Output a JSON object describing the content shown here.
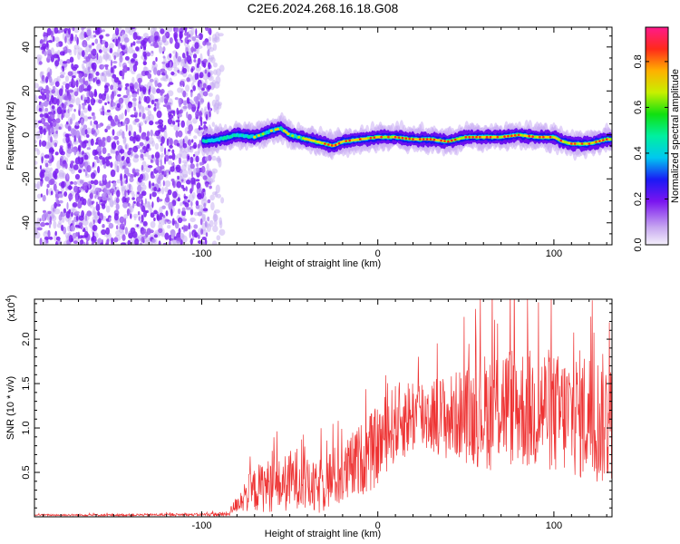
{
  "title": "C2E6.2024.268.16.18.G08",
  "chart_data": [
    {
      "type": "heatmap",
      "xlabel": "Height of straight line (km)",
      "ylabel": "Frequency (Hz)",
      "xlim": [
        -195,
        133
      ],
      "ylim": [
        -50,
        49
      ],
      "x_ticks": [
        -100,
        0,
        100
      ],
      "x_tick_labels": [
        "-100",
        "0",
        "100"
      ],
      "y_ticks": [
        -40,
        -20,
        0,
        20,
        40
      ],
      "y_tick_labels": [
        "-40",
        "-20",
        "0",
        "20",
        "40"
      ],
      "noise_region_x": [
        -195,
        -88
      ],
      "ridge": {
        "x": [
          -100,
          -90,
          -80,
          -70,
          -60,
          -55,
          -50,
          -40,
          -35,
          -30,
          -25,
          -20,
          -10,
          0,
          10,
          20,
          30,
          40,
          50,
          60,
          70,
          80,
          90,
          100,
          105,
          110,
          120,
          130
        ],
        "freq": [
          -3,
          -2,
          0,
          -1,
          2,
          3,
          0,
          -2,
          -3,
          -4,
          -5,
          -3,
          -2,
          -1,
          -1,
          -2,
          -2,
          -3,
          -1,
          -1,
          -1,
          0,
          -1,
          -1,
          -3,
          -4,
          -4,
          -2
        ]
      },
      "colorbar": {
        "label": "Normalized spectral amplitude",
        "range": [
          0.0,
          0.95
        ],
        "ticks": [
          0.0,
          0.2,
          0.4,
          0.6,
          0.8
        ],
        "tick_labels": [
          "0.0",
          "0.2",
          "0.4",
          "0.6",
          "0.8"
        ]
      }
    },
    {
      "type": "line",
      "xlabel": "Height of straight line (km)",
      "ylabel": "SNR (10 * v/v)",
      "multiplier": "(x10",
      "multiplier_exp": "4",
      "multiplier_close": ")",
      "xlim": [
        -195,
        133
      ],
      "ylim": [
        0,
        24500
      ],
      "x_ticks": [
        -100,
        0,
        100
      ],
      "x_tick_labels": [
        "-100",
        "0",
        "100"
      ],
      "y_ticks": [
        5000,
        10000,
        15000,
        20000
      ],
      "y_tick_labels": [
        "0.5",
        "1.0",
        "1.5",
        "2.0"
      ],
      "series": [
        {
          "color": "#ee3333",
          "x": [
            -195,
            -150,
            -100,
            -85,
            -80,
            -75,
            -70,
            -65,
            -60,
            -55,
            -50,
            -45,
            -40,
            -35,
            -30,
            -25,
            -20,
            -15,
            -10,
            -5,
            0,
            5,
            10,
            15,
            20,
            25,
            30,
            35,
            40,
            45,
            50,
            55,
            60,
            65,
            70,
            75,
            80,
            85,
            90,
            95,
            100,
            105,
            110,
            115,
            120,
            125,
            130
          ],
          "y_mean": [
            200,
            200,
            250,
            300,
            1500,
            2500,
            3000,
            3500,
            3500,
            3500,
            4000,
            4500,
            3500,
            3000,
            4000,
            4500,
            4500,
            5500,
            6500,
            7000,
            8000,
            9500,
            10500,
            11000,
            11500,
            11500,
            11500,
            11500,
            11000,
            11500,
            11500,
            11500,
            12000,
            12000,
            13000,
            12500,
            12500,
            12000,
            12000,
            12500,
            11500,
            11500,
            11500,
            11500,
            11500,
            11000,
            11000
          ],
          "y_spread": [
            100,
            120,
            150,
            300,
            1000,
            2000,
            2500,
            3000,
            3000,
            3000,
            3500,
            3500,
            3000,
            3000,
            3500,
            3500,
            3500,
            4000,
            4000,
            4500,
            4500,
            4500,
            4500,
            4500,
            4500,
            4500,
            4500,
            4500,
            5000,
            5000,
            5500,
            6000,
            6500,
            7000,
            7000,
            7000,
            7000,
            7000,
            7000,
            7000,
            7000,
            7000,
            7000,
            7500,
            7500,
            7500,
            7500
          ]
        }
      ]
    }
  ]
}
